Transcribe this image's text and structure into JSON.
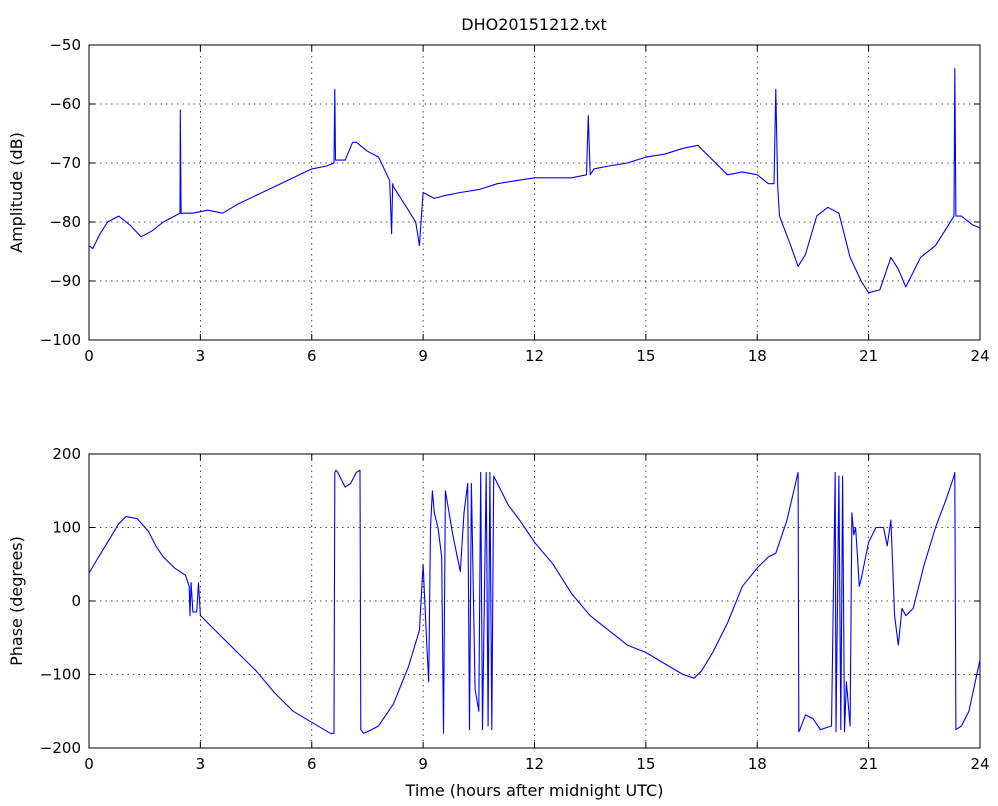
{
  "chart_data": [
    {
      "type": "line",
      "title": "DHO20151212.txt",
      "xlabel": "",
      "ylabel": "Amplitude (dB)",
      "xlim": [
        0,
        24
      ],
      "ylim": [
        -100,
        -50
      ],
      "xticks": [
        0,
        3,
        6,
        9,
        12,
        15,
        18,
        21,
        24
      ],
      "yticks": [
        -100,
        -90,
        -80,
        -70,
        -60,
        -50
      ],
      "grid": true,
      "series": [
        {
          "color": "#0000ff",
          "x": [
            0,
            0.1,
            0.3,
            0.5,
            0.8,
            1.1,
            1.4,
            1.7,
            2.0,
            2.3,
            2.45,
            2.46,
            2.48,
            2.5,
            2.8,
            3.2,
            3.6,
            4.0,
            4.5,
            5.0,
            5.5,
            6.0,
            6.4,
            6.6,
            6.62,
            6.64,
            6.66,
            6.9,
            7.1,
            7.2,
            7.5,
            7.8,
            8.1,
            8.15,
            8.18,
            8.2,
            8.5,
            8.8,
            8.9,
            9.0,
            9.3,
            9.6,
            10.0,
            10.5,
            11.0,
            11.5,
            12.0,
            12.5,
            13.0,
            13.4,
            13.45,
            13.5,
            13.6,
            14.0,
            14.5,
            15.0,
            15.5,
            16.0,
            16.4,
            16.8,
            17.2,
            17.6,
            18.0,
            18.3,
            18.45,
            18.5,
            18.55,
            18.6,
            18.9,
            19.1,
            19.3,
            19.6,
            19.9,
            20.2,
            20.5,
            20.8,
            21.0,
            21.3,
            21.6,
            21.8,
            22.0,
            22.4,
            22.8,
            23.1,
            23.3,
            23.32,
            23.35,
            23.5,
            23.8,
            24.0
          ],
          "y": [
            -84,
            -84.5,
            -82,
            -80,
            -79,
            -80.5,
            -82.5,
            -81.5,
            -80,
            -79,
            -78.5,
            -61,
            -78.5,
            -78.5,
            -78.5,
            -78,
            -78.5,
            -77,
            -75.5,
            -74,
            -72.5,
            -71,
            -70.5,
            -70,
            -57.5,
            -69.5,
            -69.5,
            -69.5,
            -66.5,
            -66.5,
            -68,
            -69,
            -73,
            -82,
            -73.5,
            -74,
            -77,
            -80,
            -84,
            -75,
            -76,
            -75.5,
            -75,
            -74.5,
            -73.5,
            -73,
            -72.5,
            -72.5,
            -72.5,
            -72,
            -62,
            -72,
            -71,
            -70.5,
            -70,
            -69,
            -68.5,
            -67.5,
            -67,
            -69.5,
            -72,
            -71.5,
            -72,
            -73.5,
            -73.5,
            -57.5,
            -74,
            -79,
            -84,
            -87.5,
            -85.5,
            -79,
            -77.5,
            -78.5,
            -86,
            -90,
            -92,
            -91.5,
            -86,
            -88,
            -91,
            -86,
            -84,
            -81,
            -79,
            -54,
            -79,
            -79,
            -80.5,
            -81
          ]
        }
      ]
    },
    {
      "type": "line",
      "title": "",
      "xlabel": "Time (hours after midnight UTC)",
      "ylabel": "Phase (degrees)",
      "xlim": [
        0,
        24
      ],
      "ylim": [
        -200,
        200
      ],
      "xticks": [
        0,
        3,
        6,
        9,
        12,
        15,
        18,
        21,
        24
      ],
      "yticks": [
        -200,
        -100,
        0,
        100,
        200
      ],
      "grid": true,
      "series": [
        {
          "color": "#0000ff",
          "x": [
            0,
            0.2,
            0.5,
            0.8,
            1.0,
            1.3,
            1.6,
            1.8,
            2.0,
            2.3,
            2.6,
            2.7,
            2.72,
            2.75,
            2.8,
            2.9,
            2.95,
            3.0,
            3.05,
            3.2,
            3.6,
            4.0,
            4.5,
            5.0,
            5.5,
            6.0,
            6.5,
            6.6,
            6.62,
            6.65,
            6.7,
            6.9,
            7.05,
            7.2,
            7.3,
            7.32,
            7.4,
            7.5,
            7.8,
            8.2,
            8.6,
            8.9,
            9.0,
            9.1,
            9.15,
            9.2,
            9.25,
            9.3,
            9.4,
            9.5,
            9.55,
            9.6,
            9.8,
            10.0,
            10.1,
            10.2,
            10.25,
            10.3,
            10.4,
            10.5,
            10.55,
            10.6,
            10.7,
            10.75,
            10.8,
            10.85,
            10.9,
            11.0,
            11.3,
            11.6,
            12.0,
            12.5,
            13.0,
            13.5,
            14.0,
            14.5,
            15.0,
            15.5,
            16.0,
            16.3,
            16.5,
            16.8,
            17.2,
            17.6,
            18.0,
            18.3,
            18.5,
            18.8,
            19.1,
            19.12,
            19.15,
            19.3,
            19.5,
            19.7,
            20.0,
            20.1,
            20.12,
            20.2,
            20.25,
            20.3,
            20.35,
            20.4,
            20.5,
            20.55,
            20.6,
            20.65,
            20.7,
            20.75,
            20.8,
            21.0,
            21.2,
            21.4,
            21.5,
            21.6,
            21.7,
            21.8,
            21.9,
            22.0,
            22.2,
            22.5,
            22.8,
            23.1,
            23.3,
            23.32,
            23.35,
            23.5,
            23.7,
            24.0
          ],
          "y": [
            38,
            55,
            80,
            105,
            115,
            112,
            95,
            75,
            60,
            45,
            35,
            20,
            -20,
            25,
            -15,
            -15,
            25,
            -20,
            -22,
            -30,
            -50,
            -70,
            -95,
            -125,
            -150,
            -165,
            -180,
            -180,
            175,
            178,
            175,
            155,
            160,
            175,
            178,
            -175,
            -180,
            -178,
            -170,
            -140,
            -90,
            -40,
            50,
            -60,
            -110,
            100,
            150,
            120,
            100,
            60,
            -180,
            150,
            90,
            40,
            120,
            160,
            -175,
            160,
            -120,
            -150,
            175,
            -175,
            175,
            -170,
            175,
            -175,
            170,
            160,
            130,
            110,
            80,
            50,
            10,
            -20,
            -40,
            -60,
            -70,
            -85,
            -100,
            -105,
            -95,
            -70,
            -30,
            20,
            45,
            60,
            65,
            110,
            175,
            -178,
            -175,
            -155,
            -160,
            -175,
            -170,
            175,
            -178,
            170,
            -175,
            170,
            -178,
            -110,
            -170,
            120,
            90,
            100,
            60,
            20,
            30,
            80,
            100,
            100,
            75,
            110,
            -20,
            -60,
            -10,
            -20,
            -10,
            50,
            100,
            140,
            170,
            175,
            -175,
            -170,
            -150,
            -80
          ]
        }
      ]
    }
  ]
}
